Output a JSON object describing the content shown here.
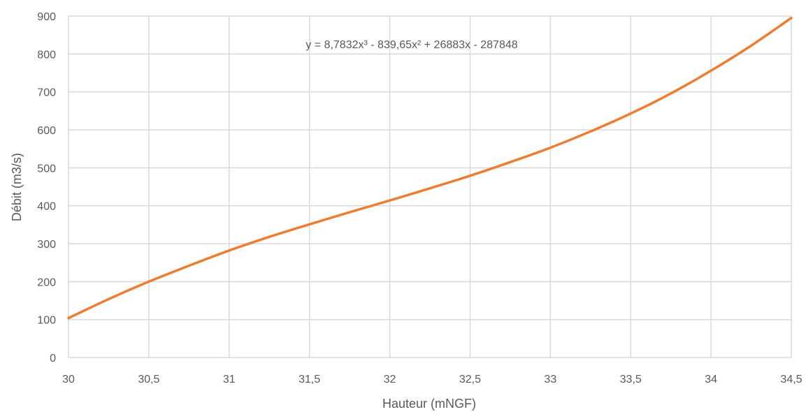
{
  "chart_data": {
    "type": "line",
    "xlabel": "Hauteur (mNGF)",
    "ylabel": "Débit (m3/s)",
    "xlim": [
      30,
      34.5
    ],
    "ylim": [
      0,
      900
    ],
    "x_ticks": [
      "30",
      "30,5",
      "31",
      "31,5",
      "32",
      "32,5",
      "33",
      "33,5",
      "34",
      "34,5"
    ],
    "y_ticks": [
      "0",
      "100",
      "200",
      "300",
      "400",
      "500",
      "600",
      "700",
      "800",
      "900"
    ],
    "grid": true,
    "annotation": "y = 8,7832x³ - 839,65x² + 26883x - 287848",
    "series": [
      {
        "color": "#ED7D31",
        "x": [
          30,
          30.25,
          30.5,
          30.75,
          31,
          31.25,
          31.5,
          31.75,
          32,
          32.25,
          32.5,
          32.75,
          33,
          33.25,
          33.5,
          33.75,
          34,
          34.25,
          34.5
        ],
        "y": [
          104,
          154,
          200,
          242,
          282,
          318,
          351,
          383,
          414,
          446,
          479,
          515,
          553,
          596,
          643,
          696,
          756,
          822,
          895
        ]
      }
    ]
  }
}
